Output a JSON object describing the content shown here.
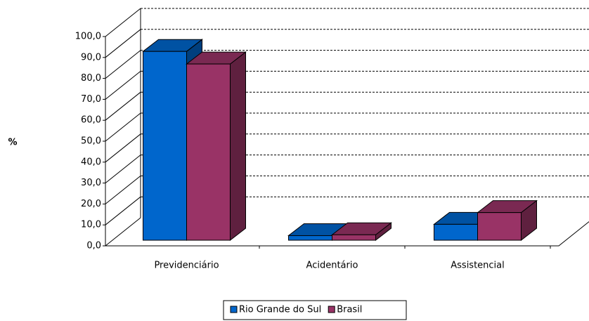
{
  "chart_data": {
    "type": "bar3d",
    "y_label": "%",
    "categories": [
      "Previdenciário",
      "Acidentário",
      "Assistencial"
    ],
    "series": [
      {
        "name": "Rio Grande do Sul",
        "color": "#0066cc",
        "values": [
          90.2,
          2.2,
          7.6
        ]
      },
      {
        "name": "Brasil",
        "color": "#993366",
        "values": [
          84.2,
          2.6,
          13.2
        ]
      }
    ],
    "ylim": [
      0,
      100
    ],
    "yticks": [
      {
        "value": 0,
        "label": "0,0"
      },
      {
        "value": 10,
        "label": "10,0"
      },
      {
        "value": 20,
        "label": "20,0"
      },
      {
        "value": 30,
        "label": "30,0"
      },
      {
        "value": 40,
        "label": "40,0"
      },
      {
        "value": 50,
        "label": "50,0"
      },
      {
        "value": 60,
        "label": "60,0"
      },
      {
        "value": 70,
        "label": "70,0"
      },
      {
        "value": 80,
        "label": "80,0"
      },
      {
        "value": 90,
        "label": "90,0"
      },
      {
        "value": 100,
        "label": "100,0"
      }
    ],
    "grid": true,
    "legend": "bottom"
  }
}
